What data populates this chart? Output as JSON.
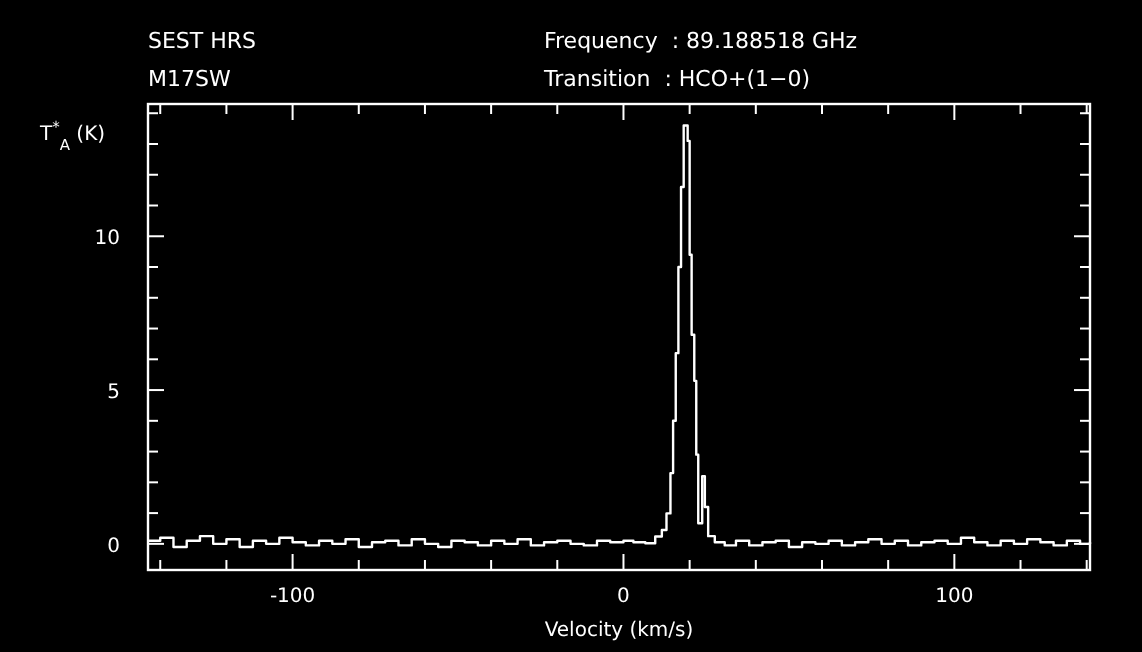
{
  "chart_data": {
    "type": "step",
    "xlabel": "Velocity (km/s)",
    "ylabel": "T$^{*}$$_{A}$ (K)",
    "annotations": [
      "SEST HRS",
      "M17SW",
      "Frequency  : 89.188518 GHz",
      "Transition  : HCO+(1−0)"
    ],
    "xlim": [
      -143.7,
      141
    ],
    "ylim": [
      -0.85,
      14.3
    ],
    "xticks": [
      {
        "value": -140,
        "label": null
      },
      {
        "value": -120,
        "label": null
      },
      -100,
      {
        "value": -80,
        "label": null
      },
      {
        "value": -60,
        "label": null
      },
      {
        "value": -40,
        "label": null
      },
      {
        "value": -20,
        "label": null
      },
      0,
      {
        "value": 20,
        "label": null
      },
      {
        "value": 40,
        "label": null
      },
      {
        "value": 60,
        "label": null
      },
      {
        "value": 80,
        "label": null
      },
      100,
      {
        "value": 120,
        "label": null
      },
      {
        "value": 140,
        "label": null
      }
    ],
    "yticks": [
      0,
      {
        "value": 1,
        "label": null
      },
      {
        "value": 2,
        "label": null
      },
      {
        "value": 3,
        "label": null
      },
      {
        "value": 4,
        "label": null
      },
      5,
      {
        "value": 6,
        "label": null
      },
      {
        "value": 7,
        "label": null
      },
      {
        "value": 8,
        "label": null
      },
      {
        "value": 9,
        "label": null
      },
      10,
      {
        "value": 11,
        "label": null
      },
      {
        "value": 12,
        "label": null
      },
      {
        "value": 13,
        "label": null
      },
      {
        "value": 14,
        "label": null
      }
    ],
    "grid": false,
    "series": [
      {
        "color": "#ffffff",
        "x": [
          -143.5,
          -140,
          -136,
          -132,
          -128,
          -124,
          -120,
          -116,
          -112,
          -108,
          -104,
          -100,
          -96,
          -92,
          -88,
          -84,
          -80,
          -76,
          -72,
          -68,
          -64,
          -60,
          -56,
          -52,
          -48,
          -44,
          -40,
          -36,
          -32,
          -28,
          -24,
          -20,
          -16,
          -12,
          -8,
          -4,
          0,
          3,
          6.6,
          9.6,
          11.6,
          13,
          14.2,
          15,
          15.8,
          16.6,
          17.4,
          18.2,
          19,
          19.4,
          20,
          20.6,
          21.4,
          22,
          22.6,
          23.8,
          24.6,
          25.6,
          27.6,
          30.6,
          34,
          38,
          42,
          46,
          50,
          54,
          58,
          62,
          66,
          70,
          74,
          78,
          82,
          86,
          90,
          94,
          98,
          102,
          106,
          110,
          114,
          118,
          122,
          126,
          130,
          134,
          138,
          141
        ],
        "values": [
          0.1,
          0.2,
          -0.1,
          0.1,
          0.25,
          0,
          0.15,
          -0.1,
          0.1,
          0,
          0.2,
          0.05,
          -0.05,
          0.1,
          0,
          0.15,
          -0.1,
          0.05,
          0.1,
          -0.05,
          0.15,
          0,
          -0.1,
          0.1,
          0.05,
          -0.05,
          0.1,
          0,
          0.15,
          -0.05,
          0.05,
          0.1,
          0,
          -0.05,
          0.1,
          0.05,
          0.1,
          0.05,
          0.02,
          0.24,
          0.45,
          0.99,
          2.3,
          4.0,
          6.2,
          9.0,
          11.6,
          13.6,
          13.6,
          13.1,
          9.4,
          6.8,
          5.3,
          2.9,
          0.67,
          2.2,
          1.2,
          0.25,
          0.05,
          -0.05,
          0.1,
          -0.05,
          0.05,
          0.1,
          -0.1,
          0.05,
          0,
          0.1,
          -0.05,
          0.05,
          0.15,
          0,
          0.1,
          -0.05,
          0.05,
          0.1,
          0,
          0.2,
          0.05,
          -0.05,
          0.1,
          0,
          0.15,
          0.05,
          -0.05,
          0.1,
          0,
          0.05
        ]
      }
    ]
  }
}
